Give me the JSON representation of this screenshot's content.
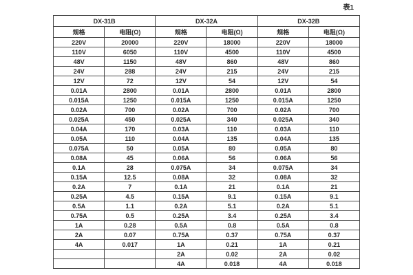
{
  "caption": "表1",
  "table": {
    "groups": [
      {
        "label": "DX-31B"
      },
      {
        "label": "DX-32A"
      },
      {
        "label": "DX-32B"
      }
    ],
    "subheaders": {
      "spec": "规格",
      "resistance": "电阻(Ω)"
    },
    "rows": [
      [
        "220V",
        "20000",
        "220V",
        "18000",
        "220V",
        "18000"
      ],
      [
        "110V",
        "6050",
        "110V",
        "4500",
        "110V",
        "4500"
      ],
      [
        "48V",
        "1150",
        "48V",
        "860",
        "48V",
        "860"
      ],
      [
        "24V",
        "288",
        "24V",
        "215",
        "24V",
        "215"
      ],
      [
        "12V",
        "72",
        "12V",
        "54",
        "12V",
        "54"
      ],
      [
        "0.01A",
        "2800",
        "0.01A",
        "2800",
        "0.01A",
        "2800"
      ],
      [
        "0.015A",
        "1250",
        "0.015A",
        "1250",
        "0.015A",
        "1250"
      ],
      [
        "0.02A",
        "700",
        "0.02A",
        "700",
        "0.02A",
        "700"
      ],
      [
        "0.025A",
        "450",
        "0.025A",
        "340",
        "0.025A",
        "340"
      ],
      [
        "0.04A",
        "170",
        "0.03A",
        "110",
        "0.03A",
        "110"
      ],
      [
        "0.05A",
        "110",
        "0.04A",
        "135",
        "0.04A",
        "135"
      ],
      [
        "0.075A",
        "50",
        "0.05A",
        "80",
        "0.05A",
        "80"
      ],
      [
        "0.08A",
        "45",
        "0.06A",
        "56",
        "0.06A",
        "56"
      ],
      [
        "0.1A",
        "28",
        "0.075A",
        "34",
        "0.075A",
        "34"
      ],
      [
        "0.15A",
        "12.5",
        "0.08A",
        "32",
        "0.08A",
        "32"
      ],
      [
        "0.2A",
        "7",
        "0.1A",
        "21",
        "0.1A",
        "21"
      ],
      [
        "0.25A",
        "4.5",
        "0.15A",
        "9.1",
        "0.15A",
        "9.1"
      ],
      [
        "0.5A",
        "1.1",
        "0.2A",
        "5.1",
        "0.2A",
        "5.1"
      ],
      [
        "0.75A",
        "0.5",
        "0.25A",
        "3.4",
        "0.25A",
        "3.4"
      ],
      [
        "1A",
        "0.28",
        "0.5A",
        "0.8",
        "0.5A",
        "0.8"
      ],
      [
        "2A",
        "0.07",
        "0.75A",
        "0.37",
        "0.75A",
        "0.37"
      ],
      [
        "4A",
        "0.017",
        "1A",
        "0.21",
        "1A",
        "0.21"
      ],
      [
        "",
        "",
        "2A",
        "0.02",
        "2A",
        "0.02"
      ],
      [
        "",
        "",
        "4A",
        "0.018",
        "4A",
        "0.018"
      ]
    ]
  },
  "colors": {
    "background": "#ffffff",
    "border": "#454545",
    "text": "#2a2a2a"
  }
}
